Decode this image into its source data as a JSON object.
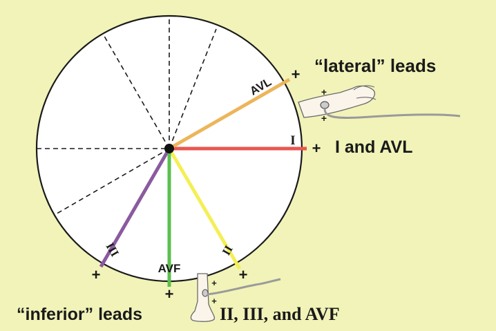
{
  "colors": {
    "background": "#f1f3b8",
    "circle_fill": "#ffffff",
    "circle_stroke": "#1a1a1a",
    "lead_I": "#e8574f",
    "lead_AVL": "#edb55a",
    "lead_II": "#f4ef54",
    "lead_III": "#8a5aa0",
    "lead_AVF": "#5bbf4c",
    "dashed": "#1a1a1a",
    "text": "#1a1a1a"
  },
  "leads": {
    "I": {
      "label": "I",
      "plus": "+"
    },
    "AVL": {
      "label": "AVL",
      "plus": "+"
    },
    "II": {
      "label": "II",
      "plus": "+"
    },
    "III": {
      "label": "III",
      "plus": "+"
    },
    "AVF": {
      "label": "AVF",
      "plus": "+"
    }
  },
  "groups": {
    "lateral_title": "“lateral” leads",
    "lateral_leads": "I and AVL",
    "inferior_title": "“inferior” leads",
    "inferior_leads": "II, III, and AVF"
  },
  "electrodes": {
    "arm_plus_top": "+",
    "arm_plus_bottom": "+",
    "leg_plus_top": "+",
    "leg_plus_bottom": "+"
  },
  "icons": {
    "arm": "arm-electrode-icon",
    "leg": "leg-electrode-icon"
  }
}
